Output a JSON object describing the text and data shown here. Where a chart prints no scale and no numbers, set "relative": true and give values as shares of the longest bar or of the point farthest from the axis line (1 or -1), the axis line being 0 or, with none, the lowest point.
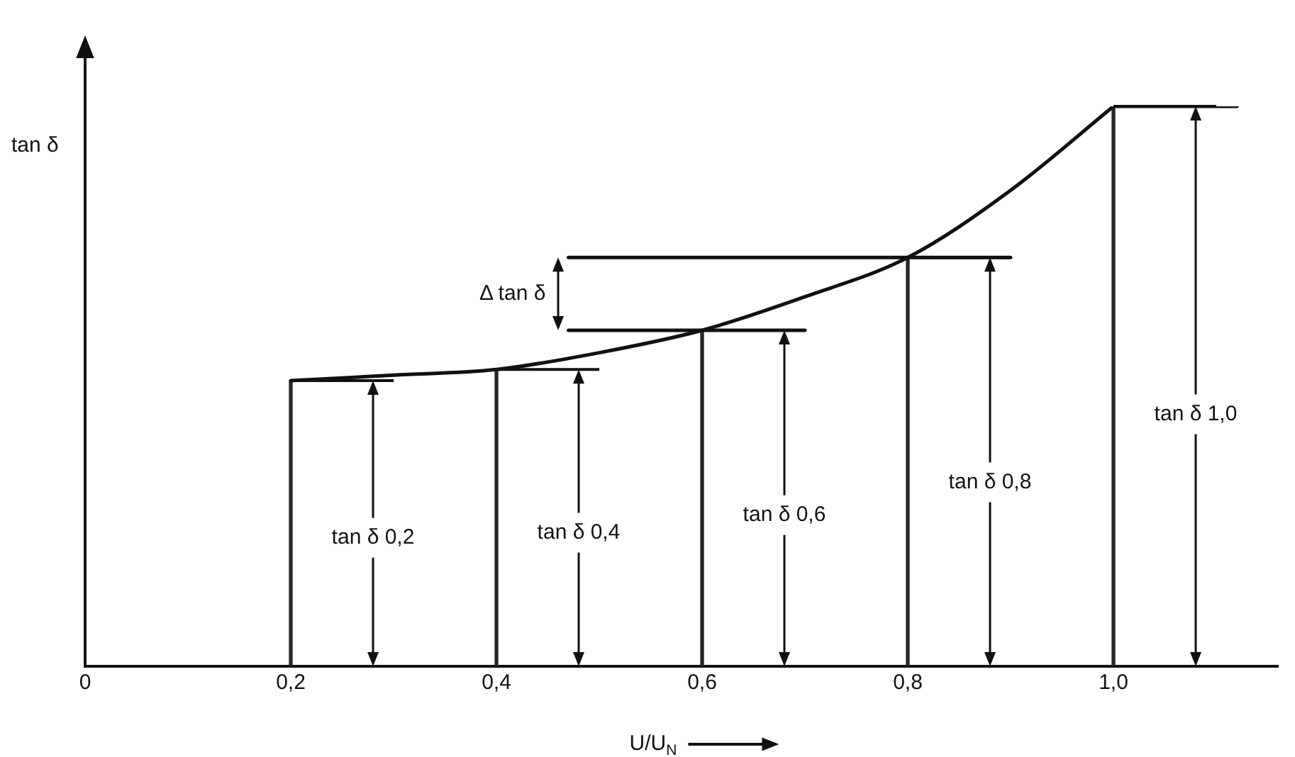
{
  "chart_data": {
    "type": "line",
    "relative": true,
    "xlabel": "U/U$_{N}$",
    "ylabel": "tan δ",
    "xlim": [
      0,
      1.16
    ],
    "xticks": [
      0,
      {
        "value": 0.2,
        "label": "0,2"
      },
      {
        "value": 0.4,
        "label": "0,4"
      },
      {
        "value": 0.6,
        "label": "0,6"
      },
      {
        "value": 0.8,
        "label": "0,8"
      },
      {
        "value": 1.0,
        "label": "1,0"
      }
    ],
    "series": [
      {
        "color": "#111111",
        "x": [
          0.2,
          0.3,
          0.4,
          0.5,
          0.6,
          0.7,
          0.8,
          0.9,
          1.0
        ],
        "values": [
          0.51,
          0.52,
          0.53,
          0.56,
          0.6,
          0.66,
          0.73,
          0.85,
          1
        ]
      },
      {
        "color": "#111111",
        "x": [
          1.0,
          1.12
        ],
        "values": [
          1,
          1
        ]
      },
      {
        "color": "#111111",
        "x": [
          0.47,
          0.9
        ],
        "values": [
          0.73,
          0.73
        ]
      },
      {
        "color": "#111111",
        "x": [
          0.47,
          0.7
        ],
        "values": [
          0.6,
          0.6
        ]
      },
      {
        "type": "bar",
        "color": "#262626",
        "x": [
          0.2,
          0.4,
          0.6,
          0.8,
          1.0
        ],
        "values": [
          0.51,
          0.53,
          0.6,
          0.73,
          1
        ]
      }
    ],
    "annotations": [
      "tan δ 0,2",
      "tan δ 0,4",
      "tan δ 0,6",
      "tan δ 0,8",
      "tan δ 1,0",
      "Δ tan δ"
    ],
    "legend": false,
    "marker": "none",
    "line_style": "solid",
    "tick_labels": "x"
  }
}
